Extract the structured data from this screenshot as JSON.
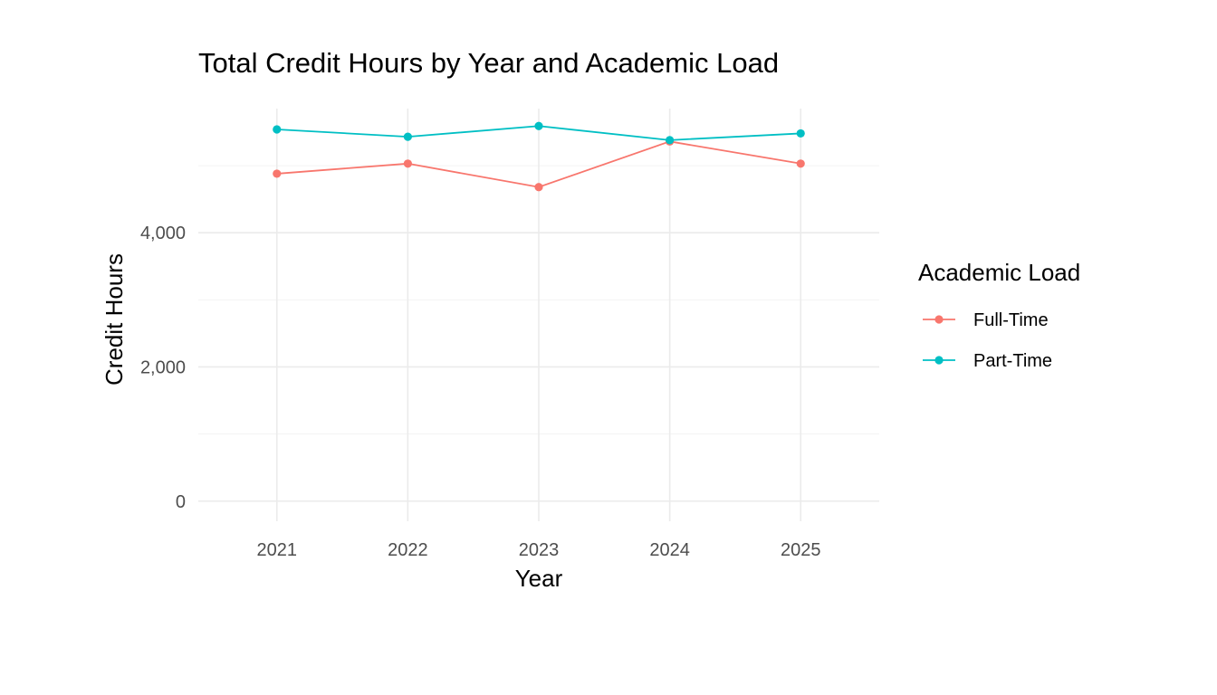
{
  "chart_data": {
    "type": "line",
    "title": "Total Credit Hours by Year and Academic Load",
    "xlabel": "Year",
    "ylabel": "Credit Hours",
    "x": [
      2021,
      2022,
      2023,
      2024,
      2025
    ],
    "x_tick_labels": [
      "2021",
      "2022",
      "2023",
      "2024",
      "2025"
    ],
    "y_ticks": [
      0,
      2000,
      4000
    ],
    "y_tick_labels": [
      "0",
      "2,000",
      "4,000"
    ],
    "ylim": [
      -300,
      5850
    ],
    "xlim": [
      2020.4,
      2025.6
    ],
    "grid": true,
    "legend_title": "Academic Load",
    "legend_position": "right",
    "series": [
      {
        "name": "Full-Time",
        "color": "#F8766D",
        "values": [
          4880,
          5030,
          4680,
          5360,
          5030
        ]
      },
      {
        "name": "Part-Time",
        "color": "#00BFC4",
        "values": [
          5540,
          5430,
          5590,
          5380,
          5480
        ]
      }
    ]
  }
}
